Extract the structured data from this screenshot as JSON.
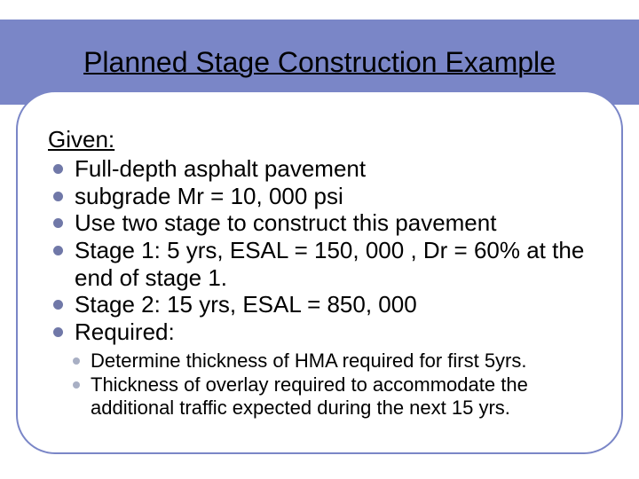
{
  "title": "Planned Stage Construction Example",
  "givenHeading": "Given:",
  "mainItems": [
    "Full-depth asphalt pavement",
    "subgrade Mr = 10, 000 psi",
    "Use two stage to construct this pavement",
    "Stage 1: 5 yrs, ESAL = 150, 000 , Dr = 60% at the end of stage 1.",
    "Stage 2: 15 yrs, ESAL = 850, 000",
    "Required:"
  ],
  "subItems": [
    "Determine thickness of HMA required for first 5yrs.",
    "Thickness of overlay required to accommodate the additional traffic expected during the next 15 yrs."
  ],
  "colors": {
    "band": "#7a86c7",
    "cardBorder": "#7a86c7",
    "mainBullet": "#7078a8",
    "subBullet": "#a8afc4",
    "text": "#000000",
    "background": "#ffffff"
  },
  "fontSizes": {
    "title": 32,
    "given": 26,
    "mainItem": 26,
    "subItem": 22
  }
}
